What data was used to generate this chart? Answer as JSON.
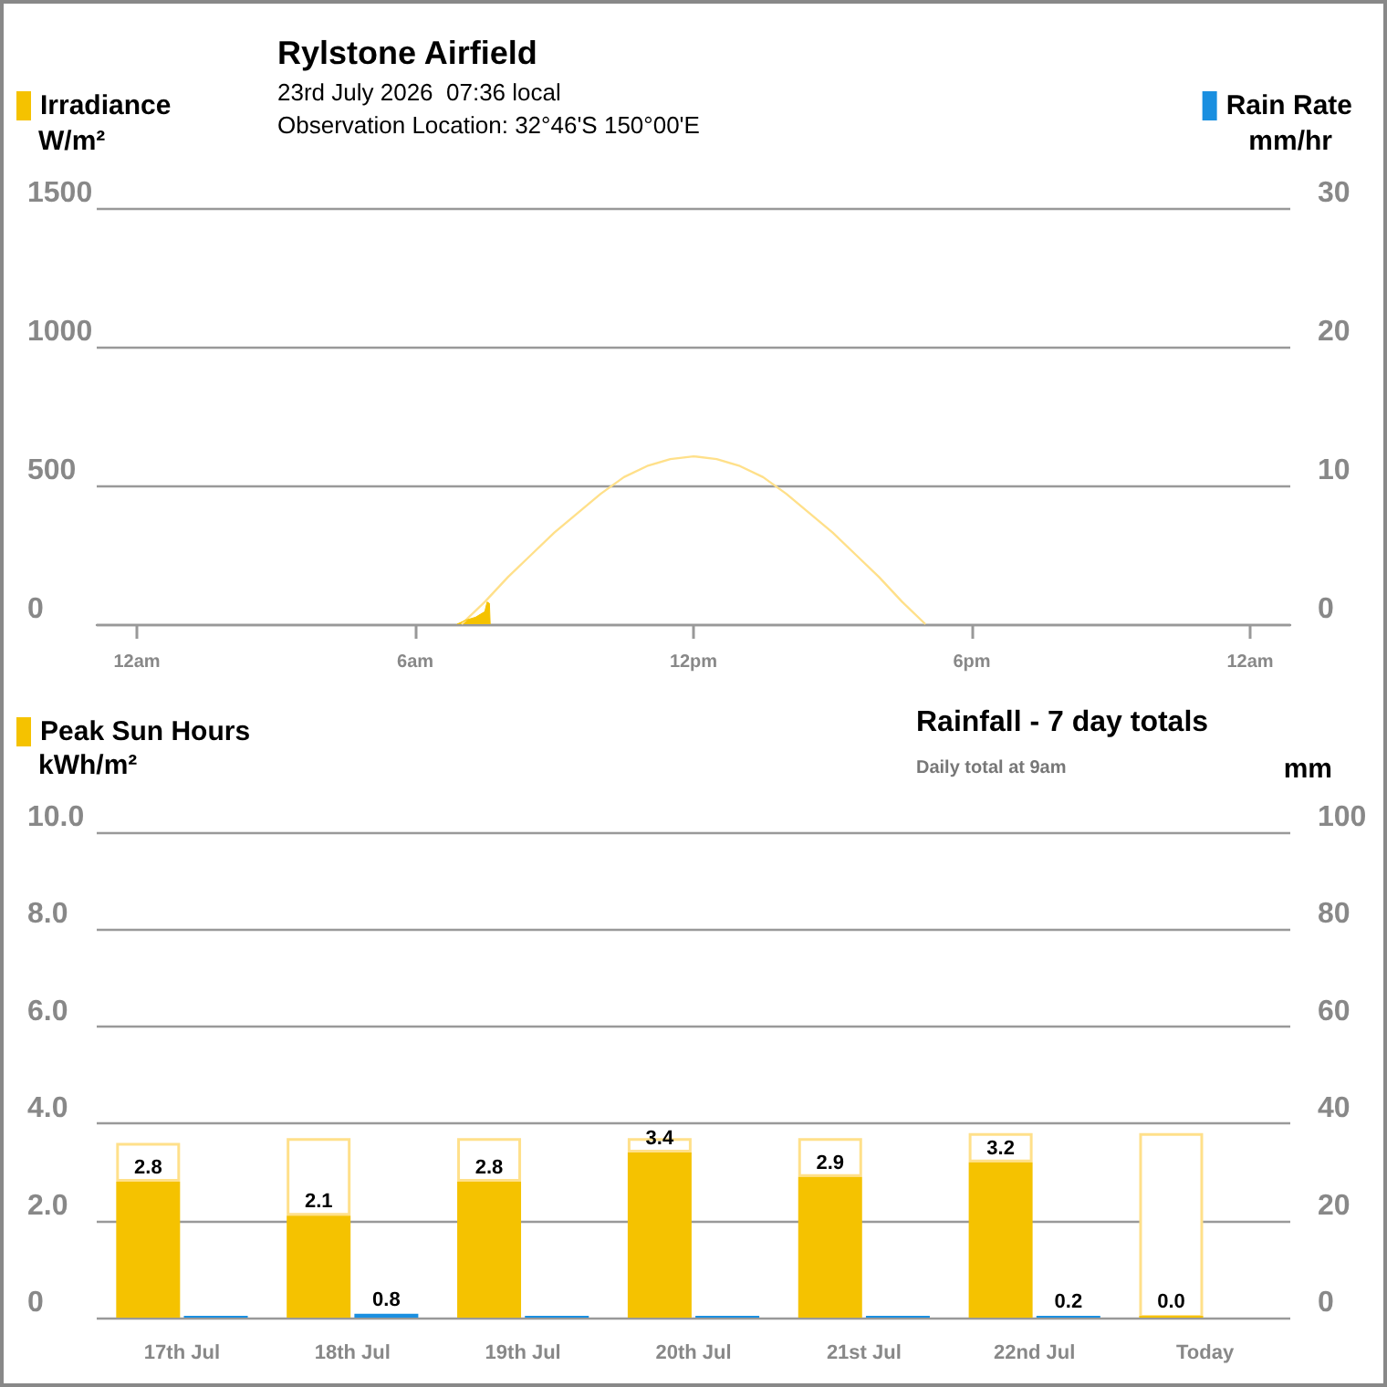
{
  "chart_data": [
    {
      "type": "line",
      "title": "Rylstone Airfield",
      "subtitle": "23rd July 2026  07:36 local",
      "annotations": [
        "Observation Location: 32°46'S 150°00'E"
      ],
      "ylabel": "W/m²",
      "y2label": "mm/hr",
      "legend": "top",
      "grid": "y",
      "xlim": [
        "2026-07-22T23:08",
        "2026-07-24T00:52"
      ],
      "xticks": [
        {
          "value": "2026-07-23T00:00",
          "label": "12am"
        },
        {
          "value": "2026-07-23T06:00",
          "label": "6am"
        },
        {
          "value": "2026-07-23T12:00",
          "label": "12pm"
        },
        {
          "value": "2026-07-23T18:00",
          "label": "6pm"
        },
        {
          "value": "2026-07-24T00:00",
          "label": "12am"
        }
      ],
      "ylim": [
        0,
        1500
      ],
      "yticks": [
        0,
        500,
        1000,
        1500
      ],
      "y2lim": [
        0,
        30
      ],
      "y2ticks": [
        0,
        10,
        20,
        30
      ],
      "series": [
        {
          "color": "#ffe08a",
          "x": [
            "2026-07-23T07:00",
            "2026-07-23T07:30",
            "2026-07-23T08:00",
            "2026-07-23T08:30",
            "2026-07-23T09:00",
            "2026-07-23T09:30",
            "2026-07-23T10:00",
            "2026-07-23T10:30",
            "2026-07-23T11:00",
            "2026-07-23T11:30",
            "2026-07-23T12:00",
            "2026-07-23T12:30",
            "2026-07-23T13:00",
            "2026-07-23T13:30",
            "2026-07-23T14:00",
            "2026-07-23T14:30",
            "2026-07-23T15:00",
            "2026-07-23T15:30",
            "2026-07-23T16:00",
            "2026-07-23T16:30",
            "2026-07-23T17:00"
          ],
          "values": [
            0,
            80,
            170,
            250,
            330,
            400,
            470,
            530,
            570,
            595,
            605,
            595,
            570,
            530,
            470,
            400,
            330,
            250,
            170,
            80,
            0
          ]
        },
        {
          "name": "Irradiance",
          "type": "area",
          "color": "#f5c200",
          "x": [
            "2026-07-23T06:54",
            "2026-07-23T07:06",
            "2026-07-23T07:18",
            "2026-07-23T07:24",
            "2026-07-23T07:30",
            "2026-07-23T07:33",
            "2026-07-23T07:36",
            "2026-07-23T07:37"
          ],
          "values": [
            0,
            15,
            25,
            35,
            45,
            80,
            75,
            0
          ]
        },
        {
          "name": "Rain Rate",
          "color": "#1a8fe0",
          "axis": "y2"
        }
      ]
    },
    {
      "type": "bar",
      "stacked": true,
      "title": "Rainfall - 7 day totals",
      "subtitle": "Daily total at 9am",
      "ylabel": "kWh/m²",
      "y2label": "mm",
      "legend": "top",
      "grid": "y",
      "categories": [
        "17th Jul",
        "18th Jul",
        "19th Jul",
        "20th Jul",
        "21st Jul",
        "22nd Jul",
        "Today"
      ],
      "ylim": [
        0,
        10
      ],
      "yticks": [
        {
          "value": 0,
          "label": "0"
        },
        {
          "value": 2,
          "label": "2.0"
        },
        {
          "value": 4,
          "label": "4.0"
        },
        {
          "value": 6,
          "label": "6.0"
        },
        {
          "value": 8,
          "label": "8.0"
        },
        {
          "value": 10,
          "label": "10.0"
        }
      ],
      "y2lim": [
        0,
        100
      ],
      "y2ticks": [
        0,
        20,
        40,
        60,
        80,
        100
      ],
      "series": [
        {
          "name": "Peak Sun Hours",
          "color": "#f5c200",
          "values": [
            2.8,
            2.1,
            2.8,
            3.4,
            2.9,
            3.2,
            0.0
          ],
          "value_labels": [
            "2.8",
            "2.1",
            "2.8",
            "3.4",
            "2.9",
            "3.2",
            "0.0"
          ]
        },
        {
          "color": "#ffe08a",
          "line_style": "solid",
          "values": [
            0.8,
            1.6,
            0.9,
            0.3,
            0.8,
            0.6,
            3.8
          ]
        },
        {
          "color": "#1a8fe0",
          "axis": "y2",
          "values": [
            0,
            0.8,
            0,
            0,
            0,
            0.2,
            null
          ],
          "value_labels": [
            null,
            "0.8",
            null,
            null,
            null,
            "0.2",
            null
          ]
        }
      ]
    }
  ]
}
